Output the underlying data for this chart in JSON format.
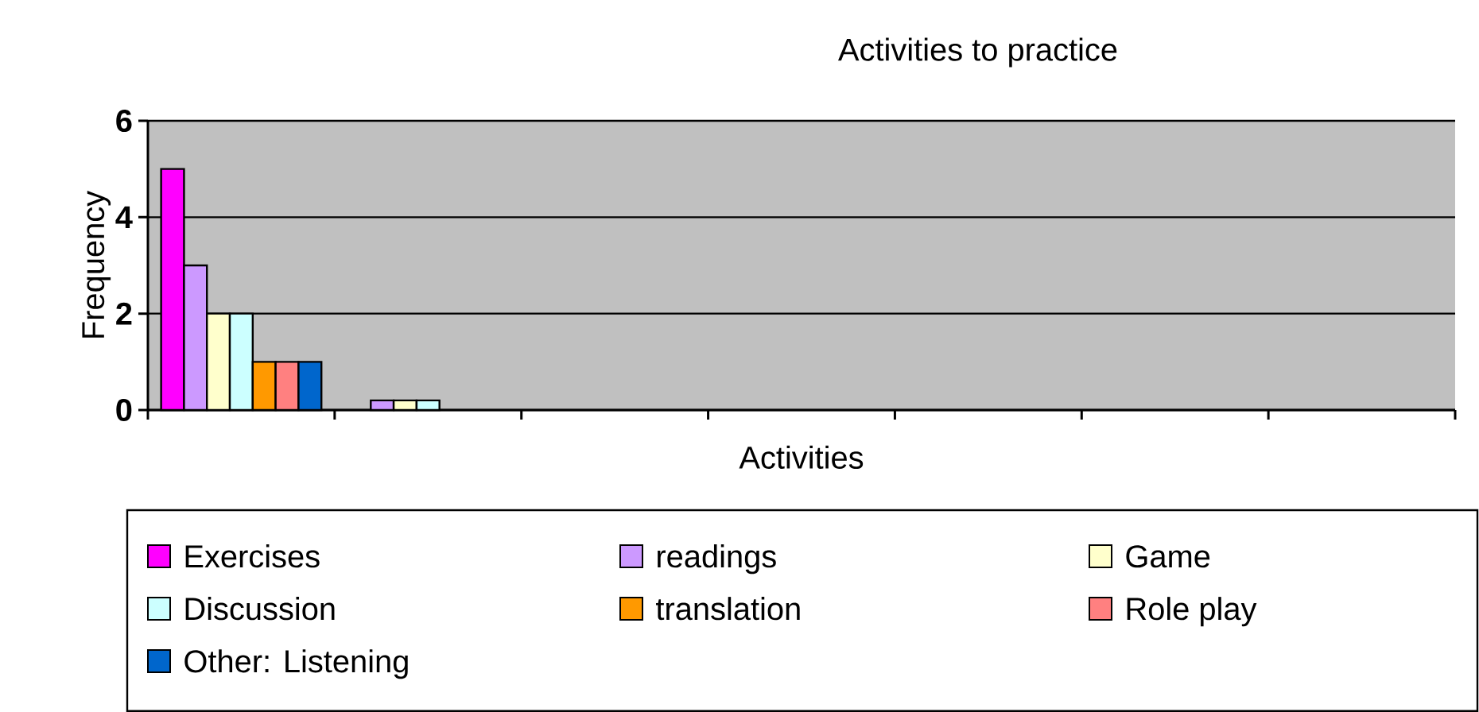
{
  "chart_data": {
    "type": "bar",
    "title": "Activities to practice",
    "xlabel": "Activities",
    "ylabel": "Frequency",
    "categories": [
      null,
      null,
      null,
      null,
      null,
      null,
      null
    ],
    "series": [
      {
        "name": "Exercises",
        "color": "#ff00ff",
        "values": [
          5,
          null,
          null,
          null,
          null,
          null,
          null
        ]
      },
      {
        "name": "readings",
        "color": "#cc99ff",
        "values": [
          3,
          0.2,
          null,
          null,
          null,
          null,
          null
        ]
      },
      {
        "name": "Game",
        "color": "#ffffcc",
        "values": [
          2,
          0.2,
          null,
          null,
          null,
          null,
          null
        ]
      },
      {
        "name": "Discussion",
        "color": "#ccffff",
        "values": [
          2,
          0.2,
          null,
          null,
          null,
          null,
          null
        ]
      },
      {
        "name": "translation",
        "color": "#ff9900",
        "values": [
          1,
          null,
          null,
          null,
          null,
          null,
          null
        ]
      },
      {
        "name": "Role play",
        "color": "#ff8080",
        "values": [
          1,
          null,
          null,
          null,
          null,
          null,
          null
        ]
      },
      {
        "name": "Other: Listening",
        "color": "#0066cc",
        "values": [
          1,
          null,
          null,
          null,
          null,
          null,
          null
        ]
      }
    ],
    "ylim": [
      0,
      6
    ],
    "yticks": [
      0,
      2,
      4,
      6
    ],
    "grid": "y",
    "legend": "bottom",
    "tick_labels": "y"
  }
}
